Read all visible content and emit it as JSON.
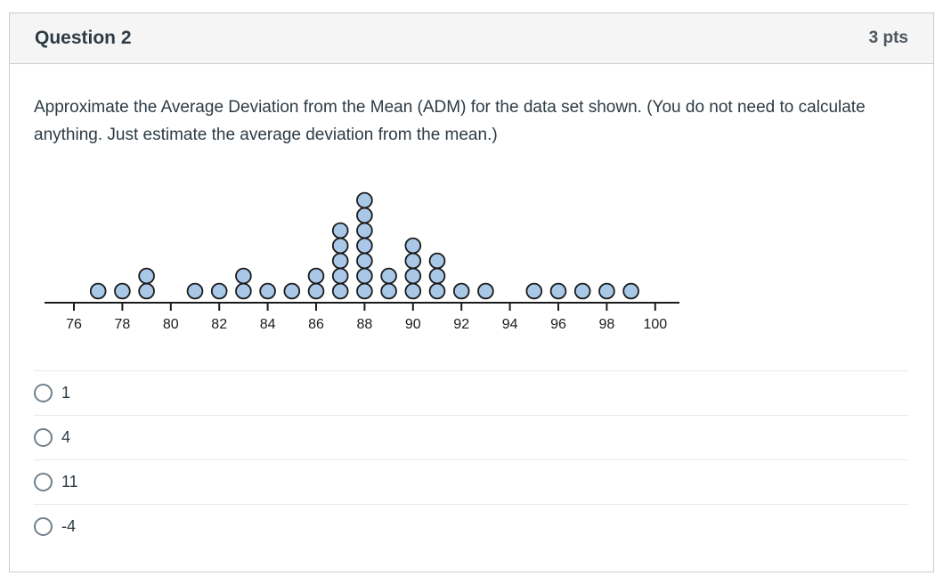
{
  "header": {
    "title": "Question 2",
    "points": "3 pts"
  },
  "question": {
    "text": "Approximate the Average Deviation from the Mean (ADM) for the data set shown. (You do not need to calculate anything. Just estimate the average deviation from the mean.)"
  },
  "chart_data": {
    "type": "scatter",
    "variant": "dot-plot",
    "title": "",
    "xlabel": "",
    "ylabel": "",
    "x": [
      77,
      78,
      79,
      81,
      82,
      83,
      84,
      85,
      86,
      87,
      88,
      89,
      90,
      91,
      92,
      93,
      95,
      96,
      97,
      98,
      99
    ],
    "counts": [
      1,
      1,
      2,
      1,
      1,
      2,
      1,
      1,
      2,
      5,
      7,
      2,
      4,
      3,
      1,
      1,
      1,
      1,
      1,
      1,
      1
    ],
    "total_points": 40,
    "axis_ticks": [
      76,
      78,
      80,
      82,
      84,
      86,
      88,
      90,
      92,
      94,
      96,
      98,
      100
    ],
    "axis_tick_labels": [
      "76",
      "78",
      "80",
      "82",
      "84",
      "86",
      "88",
      "90",
      "92",
      "94",
      "96",
      "98",
      "100"
    ],
    "xlim": [
      75,
      101
    ],
    "grid": false,
    "legend": false,
    "dot_fill": "#a9c8e8",
    "dot_stroke": "#1b1b1b",
    "axis_color": "#1b1b1b",
    "tick_label_color": "#1b1b1b"
  },
  "options": [
    {
      "label": "1"
    },
    {
      "label": "4"
    },
    {
      "label": "11"
    },
    {
      "label": "-4"
    }
  ]
}
